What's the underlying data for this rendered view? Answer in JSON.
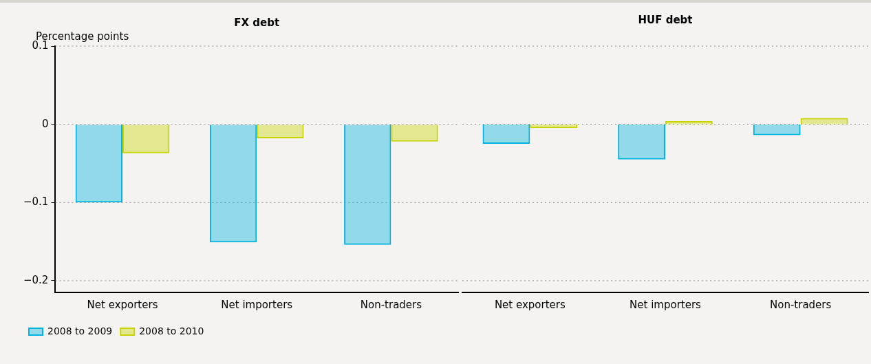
{
  "chart_data": [
    {
      "type": "bar",
      "title": "FX debt",
      "ylabel": "Percentage points",
      "categories": [
        "Net exporters",
        "Net importers",
        "Non-traders"
      ],
      "series": [
        {
          "name": "2008 to 2009",
          "color": "#00b4e0",
          "values": [
            -0.1,
            -0.151,
            -0.154
          ]
        },
        {
          "name": "2008 to 2010",
          "color": "#c8d400",
          "values": [
            -0.037,
            -0.018,
            -0.022
          ]
        }
      ],
      "ylim": [
        -0.215,
        0.1
      ],
      "yticks": [
        {
          "value": -0.2,
          "label": "−0.2"
        },
        {
          "value": -0.1,
          "label": "−0.1"
        },
        0,
        0.1
      ],
      "grid": "y",
      "legend": "bottom left"
    },
    {
      "type": "bar",
      "title": "HUF debt",
      "categories": [
        "Net exporters",
        "Net importers",
        "Non-traders"
      ],
      "series": [
        {
          "color": "#00b4e0",
          "values": [
            -0.025,
            -0.045,
            -0.014
          ]
        },
        {
          "color": "#c8d400",
          "values": [
            -0.005,
            0.004,
            0.008
          ]
        }
      ],
      "ylim": [
        -0.215,
        0.1
      ],
      "yticks": [
        -0.2,
        -0.1,
        0,
        0.1
      ],
      "grid": "y",
      "tick_labels": "x"
    }
  ]
}
